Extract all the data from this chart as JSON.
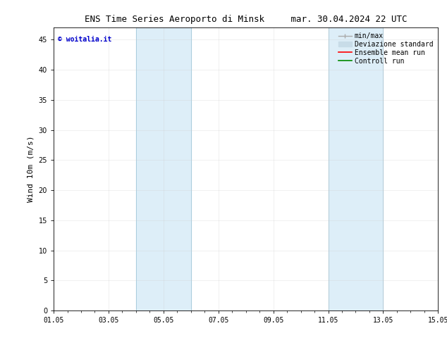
{
  "title_left": "ENS Time Series Aeroporto di Minsk",
  "title_right": "mar. 30.04.2024 22 UTC",
  "ylabel": "Wind 10m (m/s)",
  "background_color": "#ffffff",
  "plot_bg_color": "#ffffff",
  "ylim": [
    0,
    47
  ],
  "yticks": [
    0,
    5,
    10,
    15,
    20,
    25,
    30,
    35,
    40,
    45
  ],
  "xlim_start": 0,
  "xlim_end": 14,
  "xtick_labels": [
    "01.05",
    "03.05",
    "05.05",
    "07.05",
    "09.05",
    "11.05",
    "13.05",
    "15.05"
  ],
  "xtick_positions": [
    0,
    2,
    4,
    6,
    8,
    10,
    12,
    14
  ],
  "shaded_regions": [
    {
      "xmin": 3.0,
      "xmax": 5.0,
      "color": "#ddeef8",
      "alpha": 1.0
    },
    {
      "xmin": 10.0,
      "xmax": 12.0,
      "color": "#ddeef8",
      "alpha": 1.0
    }
  ],
  "vertical_lines": [
    {
      "x": 3.0,
      "color": "#aaccdd",
      "lw": 0.7
    },
    {
      "x": 5.0,
      "color": "#aaccdd",
      "lw": 0.7
    },
    {
      "x": 10.0,
      "color": "#aaccdd",
      "lw": 0.7
    },
    {
      "x": 12.0,
      "color": "#aaccdd",
      "lw": 0.7
    }
  ],
  "watermark_text": "© woitalia.it",
  "watermark_color": "#0000cc",
  "legend_entries": [
    {
      "label": "min/max",
      "color": "#aaaaaa"
    },
    {
      "label": "Deviazione standard",
      "color": "#c8dce8"
    },
    {
      "label": "Ensemble mean run",
      "color": "#ff0000"
    },
    {
      "label": "Controll run",
      "color": "#008800"
    }
  ],
  "grid_color": "#cccccc",
  "grid_alpha": 0.4,
  "tick_color": "#000000",
  "spine_color": "#000000",
  "title_fontsize": 9,
  "axis_label_fontsize": 8,
  "tick_fontsize": 7,
  "legend_fontsize": 7
}
